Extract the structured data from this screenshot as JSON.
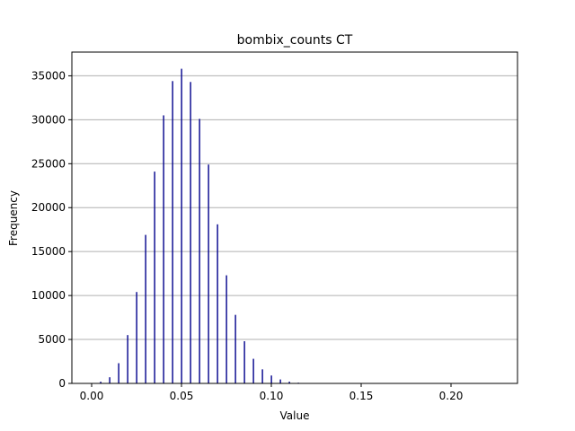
{
  "chart_data": {
    "type": "bar",
    "title": "bombix_counts CT",
    "xlabel": "Value",
    "ylabel": "Frequency",
    "xlim": [
      -0.011,
      0.237
    ],
    "ylim": [
      0,
      37700
    ],
    "x_ticks": [
      0.0,
      0.05,
      0.1,
      0.15,
      0.2
    ],
    "x_tick_labels": [
      "0.00",
      "0.05",
      "0.10",
      "0.15",
      "0.20"
    ],
    "y_ticks": [
      0,
      5000,
      10000,
      15000,
      20000,
      25000,
      30000,
      35000
    ],
    "y_tick_labels": [
      "0",
      "5000",
      "10000",
      "15000",
      "20000",
      "25000",
      "30000",
      "35000"
    ],
    "grid": "y",
    "bar_color": "#00008b",
    "x": [
      0.005,
      0.01,
      0.015,
      0.02,
      0.025,
      0.03,
      0.035,
      0.04,
      0.045,
      0.05,
      0.055,
      0.06,
      0.065,
      0.07,
      0.075,
      0.08,
      0.085,
      0.09,
      0.095,
      0.1,
      0.105,
      0.11,
      0.115
    ],
    "values": [
      200,
      700,
      2300,
      5500,
      10400,
      16900,
      24100,
      30500,
      34400,
      35800,
      34300,
      30100,
      24900,
      18100,
      12300,
      7800,
      4800,
      2800,
      1600,
      900,
      450,
      200,
      80
    ]
  }
}
